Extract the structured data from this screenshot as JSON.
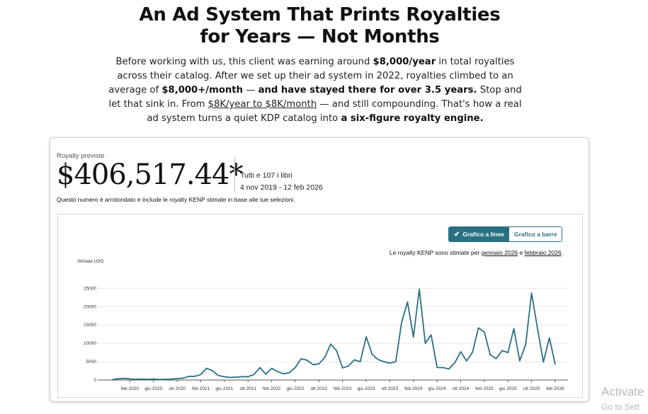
{
  "headline": {
    "line1": "An Ad System That Prints Royalties",
    "line2": "for Years — Not Months"
  },
  "intro": {
    "p1": "Before working with us, this client was earning around ",
    "b1": "$8,000/year",
    "p2": " in total royalties across their catalog. After we set up their ad system in 2022, royalties climbed to an average of ",
    "b2": "$8,000+/month",
    "p3": " — ",
    "b3": "and have stayed there for over 3.5 years.",
    "p4": " Stop and let that sink in. From ",
    "u1": "$8K/year to $8K/month",
    "p5": " — and still compounding. That's how a real ad system turns a quiet KDP catalog into ",
    "b4": "a six-figure royalty engine."
  },
  "card": {
    "label": "Royalty previste",
    "total": "$406,517.44*",
    "scope": "Tutti e 107 i libri",
    "range": "4 nov 2019 - 12 feb 2026",
    "note": "Questo numero è arrotondato e include le royalty KENP stimate in base alle tue selezioni."
  },
  "toggle": {
    "line_label": "Grafico a linee",
    "bar_label": "Grafico a barre",
    "check_icon": "check-icon"
  },
  "kenp_note": {
    "p1": "Le royalty KENP sono stimate per ",
    "u1": "gennaio 2026",
    "p2": " e ",
    "u2": "febbraio 2026",
    "p3": "."
  },
  "watermark": {
    "line1": "Activate",
    "line2": "Go to Sett"
  },
  "colors": {
    "series": "#2a6f85",
    "toggle_active": "#2a7083",
    "grid": "#e6e6e6"
  },
  "chart_data": {
    "type": "line",
    "ylabel": "Stimate USD",
    "yticks": [
      0,
      5000,
      10000,
      15000,
      20000,
      25000
    ],
    "ylim": [
      0,
      27000
    ],
    "xlim": [
      "2019-11",
      "2026-02"
    ],
    "xticks": [
      {
        "label": "feb 2020",
        "x": "2020-02"
      },
      {
        "label": "giu 2020",
        "x": "2020-06"
      },
      {
        "label": "ott 2020",
        "x": "2020-10"
      },
      {
        "label": "feb 2021",
        "x": "2021-02"
      },
      {
        "label": "giu 2021",
        "x": "2021-06"
      },
      {
        "label": "ott 2021",
        "x": "2021-10"
      },
      {
        "label": "feb 2022",
        "x": "2022-02"
      },
      {
        "label": "giu 2022",
        "x": "2022-06"
      },
      {
        "label": "ott 2022",
        "x": "2022-10"
      },
      {
        "label": "feb 2023",
        "x": "2023-02"
      },
      {
        "label": "giu 2023",
        "x": "2023-06"
      },
      {
        "label": "ott 2023",
        "x": "2023-10"
      },
      {
        "label": "feb 2024",
        "x": "2024-02"
      },
      {
        "label": "giu 2024",
        "x": "2024-06"
      },
      {
        "label": "ott 2024",
        "x": "2024-10"
      },
      {
        "label": "feb 2025",
        "x": "2025-02"
      },
      {
        "label": "giu 2025",
        "x": "2025-06"
      },
      {
        "label": "ott 2025",
        "x": "2025-10"
      },
      {
        "label": "feb 2026",
        "x": "2026-02"
      }
    ],
    "grid": true,
    "series": [
      {
        "points": [
          [
            "2019-11",
            100
          ],
          [
            "2019-12",
            350
          ],
          [
            "2020-01",
            450
          ],
          [
            "2020-02",
            300
          ],
          [
            "2020-03",
            200
          ],
          [
            "2020-04",
            250
          ],
          [
            "2020-05",
            200
          ],
          [
            "2020-06",
            250
          ],
          [
            "2020-07",
            150
          ],
          [
            "2020-08",
            200
          ],
          [
            "2020-09",
            250
          ],
          [
            "2020-10",
            400
          ],
          [
            "2020-11",
            500
          ],
          [
            "2020-12",
            1000
          ],
          [
            "2021-01",
            1000
          ],
          [
            "2021-02",
            1500
          ],
          [
            "2021-03",
            3200
          ],
          [
            "2021-04",
            2500
          ],
          [
            "2021-05",
            1200
          ],
          [
            "2021-06",
            900
          ],
          [
            "2021-07",
            700
          ],
          [
            "2021-08",
            800
          ],
          [
            "2021-09",
            900
          ],
          [
            "2021-10",
            900
          ],
          [
            "2021-11",
            1500
          ],
          [
            "2021-12",
            3400
          ],
          [
            "2022-01",
            1600
          ],
          [
            "2022-02",
            3200
          ],
          [
            "2022-03",
            2300
          ],
          [
            "2022-04",
            1700
          ],
          [
            "2022-05",
            2000
          ],
          [
            "2022-06",
            3400
          ],
          [
            "2022-07",
            5800
          ],
          [
            "2022-08",
            5400
          ],
          [
            "2022-09",
            4200
          ],
          [
            "2022-10",
            4400
          ],
          [
            "2022-11",
            6200
          ],
          [
            "2022-12",
            9800
          ],
          [
            "2023-01",
            8000
          ],
          [
            "2023-02",
            3300
          ],
          [
            "2023-03",
            3800
          ],
          [
            "2023-04",
            5500
          ],
          [
            "2023-05",
            5000
          ],
          [
            "2023-06",
            11800
          ],
          [
            "2023-07",
            7000
          ],
          [
            "2023-08",
            5600
          ],
          [
            "2023-09",
            5000
          ],
          [
            "2023-10",
            4600
          ],
          [
            "2023-11",
            5000
          ],
          [
            "2023-12",
            15700
          ],
          [
            "2024-01",
            21300
          ],
          [
            "2024-02",
            11700
          ],
          [
            "2024-03",
            24800
          ],
          [
            "2024-04",
            10000
          ],
          [
            "2024-05",
            12300
          ],
          [
            "2024-06",
            3400
          ],
          [
            "2024-07",
            3400
          ],
          [
            "2024-08",
            3000
          ],
          [
            "2024-09",
            4700
          ],
          [
            "2024-10",
            7700
          ],
          [
            "2024-11",
            5200
          ],
          [
            "2024-12",
            7600
          ],
          [
            "2025-01",
            14200
          ],
          [
            "2025-02",
            13100
          ],
          [
            "2025-03",
            6900
          ],
          [
            "2025-04",
            5800
          ],
          [
            "2025-05",
            8000
          ],
          [
            "2025-06",
            7500
          ],
          [
            "2025-07",
            14000
          ],
          [
            "2025-08",
            5200
          ],
          [
            "2025-09",
            9700
          ],
          [
            "2025-10",
            23700
          ],
          [
            "2025-11",
            14000
          ],
          [
            "2025-12",
            4900
          ],
          [
            "2026-01",
            11500
          ],
          [
            "2026-02",
            4300
          ]
        ]
      }
    ]
  }
}
